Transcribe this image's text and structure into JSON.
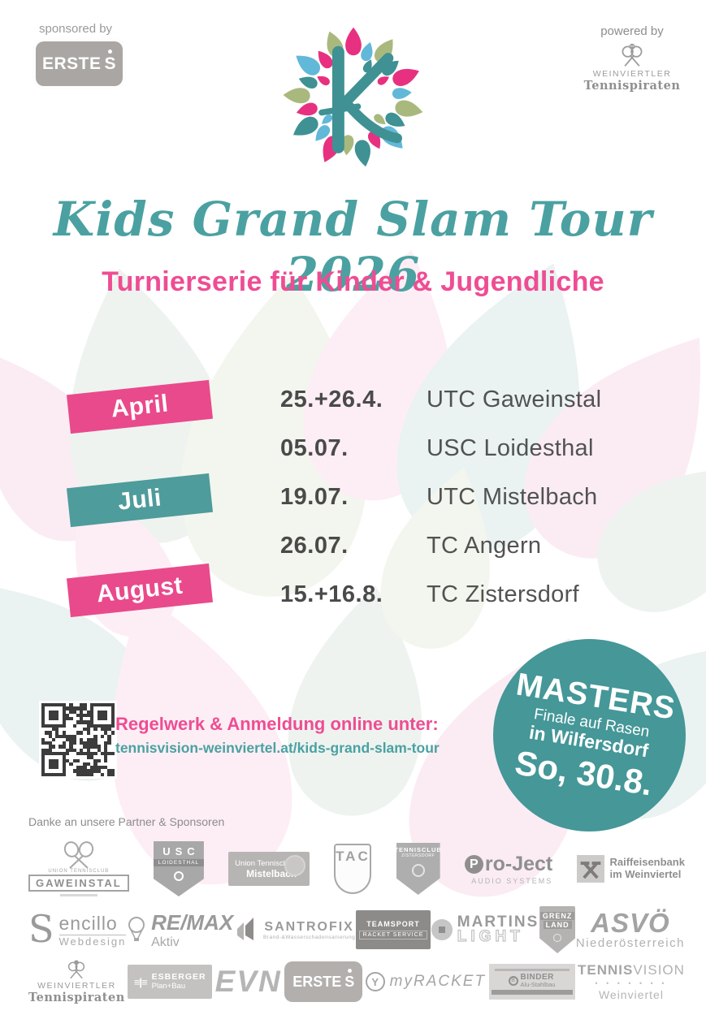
{
  "header": {
    "sponsored_by": "sponsored by",
    "erste": "ERSTE",
    "erste_s": "S",
    "powered_by": "powered by",
    "tennispiraten_line1": "WEINVIERTLER",
    "tennispiraten_line2": "Tennispiraten"
  },
  "title": "Kids Grand Slam Tour 2026",
  "subtitle": "Turnierserie für Kinder & Jugendliche",
  "schedule": {
    "months": [
      {
        "label": "April"
      },
      {
        "label": "Juli"
      },
      {
        "label": "August"
      }
    ],
    "events": [
      {
        "date": "25.+26.4.",
        "venue": "UTC Gaweinstal"
      },
      {
        "date": "05.07.",
        "venue": "USC Loidesthal"
      },
      {
        "date": "19.07.",
        "venue": "UTC Mistelbach"
      },
      {
        "date": "26.07.",
        "venue": "TC Angern"
      },
      {
        "date": "15.+16.8.",
        "venue": "TC Zistersdorf"
      }
    ]
  },
  "registration": {
    "heading": "Regelwerk & Anmeldung online unter:",
    "url": "tennisvision-weinviertel.at/kids-grand-slam-tour"
  },
  "masters": {
    "line1": "MASTERS",
    "line2": "Finale auf Rasen",
    "line3": "in Wilfersdorf",
    "line4": "So, 30.8."
  },
  "partners": {
    "heading": "Danke an unsere Partner & Sponsoren",
    "gaweinstal": {
      "club": "UNION TENNISCLUB",
      "name": "GAWEINSTAL"
    },
    "loidesthal": {
      "usc": "USC",
      "name": "LOIDESTHAL"
    },
    "mistelbach": {
      "line1": "Union Tennisclub",
      "line2": "Mistelbach"
    },
    "tac": {
      "name": "TAC"
    },
    "zistersdorf": {
      "line1": "TENNISCLUB",
      "line2": "ZISTERSDORF"
    },
    "project": {
      "p": "P",
      "name": "ro-Ject",
      "sub": "AUDIO SYSTEMS"
    },
    "raiffeisen": {
      "line1": "Raiffeisenbank",
      "line2": "im Weinviertel"
    },
    "sencillo": {
      "s": "S",
      "name": "encillo",
      "sub": "Webdesign"
    },
    "remax": {
      "name": "RE/MAX",
      "sub": "Aktiv"
    },
    "santrofix": {
      "name": "SANTROFIX",
      "sub": "Brand-&Wasserschadensanierung"
    },
    "teamsport": {
      "line1": "TEAMSPORT",
      "line2": "RACKET SERVICE"
    },
    "martins": {
      "line1": "MARTINS",
      "line2": "LIGHT"
    },
    "grenzland": {
      "line1": "GRENZ",
      "line2": "LAND"
    },
    "asvo": {
      "name": "ASVÖ",
      "sub": "Niederösterreich"
    },
    "tennispiraten": {
      "line1": "WEINVIERTLER",
      "line2": "Tennispiraten"
    },
    "esberger": {
      "bars": "≡|≡",
      "name": "ESBERGER",
      "sub": "Plan+Bau"
    },
    "evn": {
      "name": "EVN"
    },
    "erste": {
      "name": "ERSTE",
      "s": "S"
    },
    "myracket": {
      "icon": "Y",
      "name": "myRACKET"
    },
    "binder": {
      "b": "B",
      "line1": "BINDER",
      "line2": "Alu-Stahlbau"
    },
    "tennisvision": {
      "bold": "TENNIS",
      "light": "VISION",
      "dots": "• • • • • • •",
      "sub": "Weinviertel"
    }
  },
  "colors": {
    "pink": "#e94a8b",
    "teal": "#4e9c9b",
    "title_teal": "#4ba1a1",
    "masters_bg": "#459798",
    "dark_text": "#4a4a4a"
  }
}
